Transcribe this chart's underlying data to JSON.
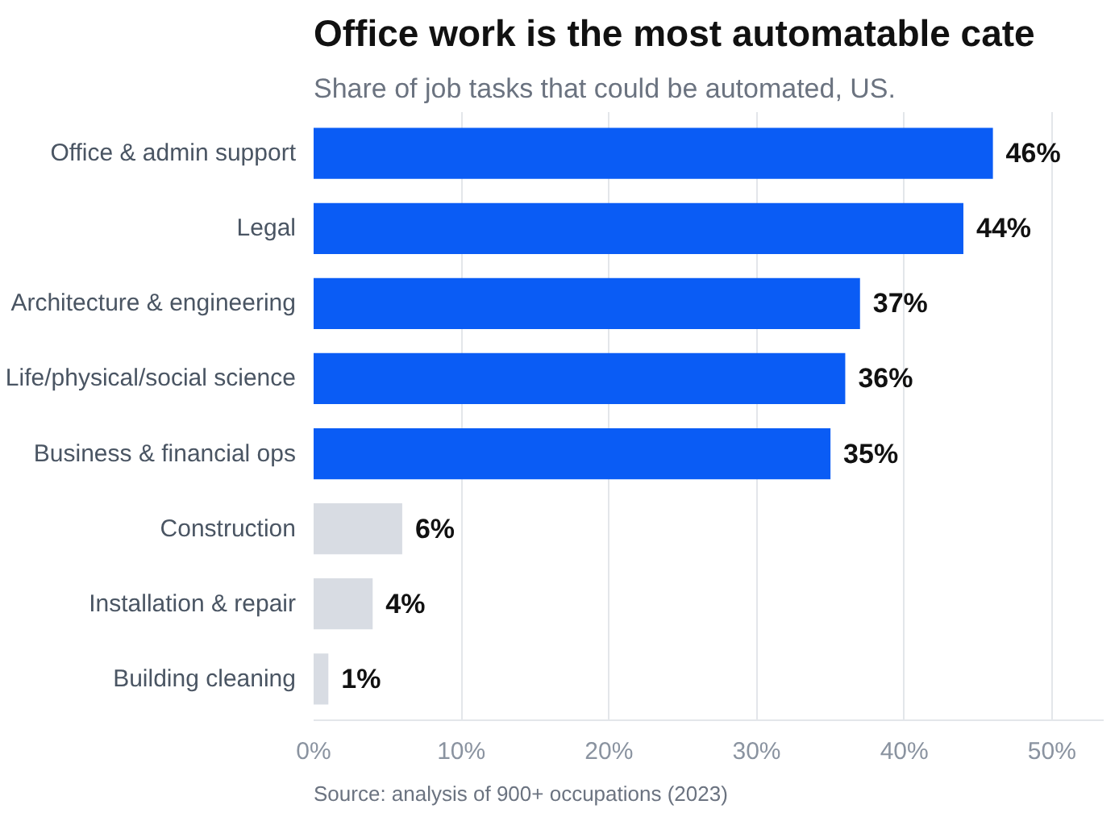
{
  "chart_data": {
    "type": "bar",
    "orientation": "horizontal",
    "title": "Office work is the most automatable cate",
    "subtitle": "Share of job tasks that could be automated, US.",
    "categories": [
      "Office & admin support",
      "Legal",
      "Architecture & engineering",
      "Life/physical/social science",
      "Business & financial ops",
      "Construction",
      "Installation & repair",
      "Building cleaning"
    ],
    "values": [
      46,
      44,
      37,
      36,
      35,
      6,
      4,
      1
    ],
    "value_labels": [
      "46%",
      "44%",
      "37%",
      "36%",
      "35%",
      "6%",
      "4%",
      "1%"
    ],
    "colors": [
      "#0a5cf5",
      "#0a5cf5",
      "#0a5cf5",
      "#0a5cf5",
      "#0a5cf5",
      "#d8dce3",
      "#d8dce3",
      "#d8dce3"
    ],
    "xlim": [
      0,
      53.5
    ],
    "xticks": [
      {
        "value": 0,
        "label": "0%"
      },
      {
        "value": 10,
        "label": "10%"
      },
      {
        "value": 20,
        "label": "20%"
      },
      {
        "value": 30,
        "label": "30%"
      },
      {
        "value": 40,
        "label": "40%"
      },
      {
        "value": 50,
        "label": "50%"
      }
    ],
    "grid": "x",
    "annotations": [
      "Source: analysis of 900+ occupations (2023)"
    ]
  }
}
